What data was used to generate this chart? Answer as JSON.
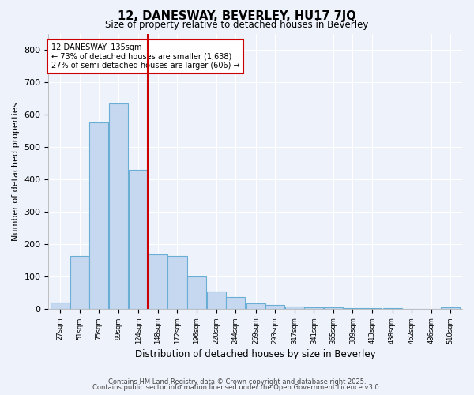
{
  "title": "12, DANESWAY, BEVERLEY, HU17 7JQ",
  "subtitle": "Size of property relative to detached houses in Beverley",
  "xlabel": "Distribution of detached houses by size in Beverley",
  "ylabel": "Number of detached properties",
  "bar_color": "#c5d8f0",
  "bar_edge_color": "#6aaed6",
  "background_color": "#eef2fb",
  "grid_color": "#ffffff",
  "vline_color": "#cc0000",
  "annotation_title": "12 DANESWAY: 135sqm",
  "annotation_line1": "← 73% of detached houses are smaller (1,638)",
  "annotation_line2": "27% of semi-detached houses are larger (606) →",
  "annotation_box_color": "#ffffff",
  "annotation_box_edge": "#cc0000",
  "bin_labels": [
    "27sqm",
    "51sqm",
    "75sqm",
    "99sqm",
    "124sqm",
    "148sqm",
    "172sqm",
    "196sqm",
    "220sqm",
    "244sqm",
    "269sqm",
    "293sqm",
    "317sqm",
    "341sqm",
    "365sqm",
    "389sqm",
    "413sqm",
    "438sqm",
    "462sqm",
    "486sqm",
    "510sqm"
  ],
  "bin_centers": [
    27,
    51,
    75,
    99,
    124,
    148,
    172,
    196,
    220,
    244,
    269,
    293,
    317,
    341,
    365,
    389,
    413,
    438,
    462,
    486,
    510
  ],
  "bar_heights": [
    20,
    165,
    575,
    635,
    430,
    170,
    165,
    100,
    55,
    38,
    18,
    14,
    8,
    7,
    5,
    4,
    3,
    3,
    2,
    2,
    5
  ],
  "vline_x_index": 4,
  "ylim": [
    0,
    850
  ],
  "yticks": [
    0,
    100,
    200,
    300,
    400,
    500,
    600,
    700,
    800
  ],
  "footer1": "Contains HM Land Registry data © Crown copyright and database right 2025.",
  "footer2": "Contains public sector information licensed under the Open Government Licence v3.0."
}
